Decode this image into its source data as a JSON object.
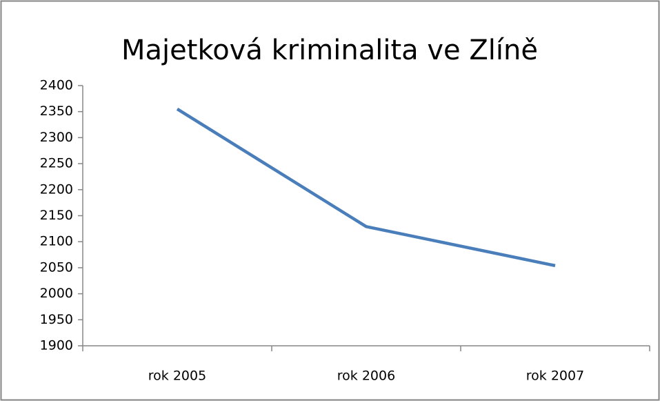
{
  "chart_data": {
    "type": "line",
    "title": "Majetková kriminalita ve Zlíně",
    "categories": [
      "rok 2005",
      "rok 2006",
      "rok 2007"
    ],
    "series": [
      {
        "name": "Majetková kriminalita",
        "color": "#4a7ebb",
        "values": [
          2355,
          2129,
          2054
        ]
      }
    ],
    "ylim": [
      1900,
      2400
    ],
    "yticks": [
      1900,
      1950,
      2000,
      2050,
      2100,
      2150,
      2200,
      2250,
      2300,
      2350,
      2400
    ],
    "grid": false,
    "legend": false
  }
}
